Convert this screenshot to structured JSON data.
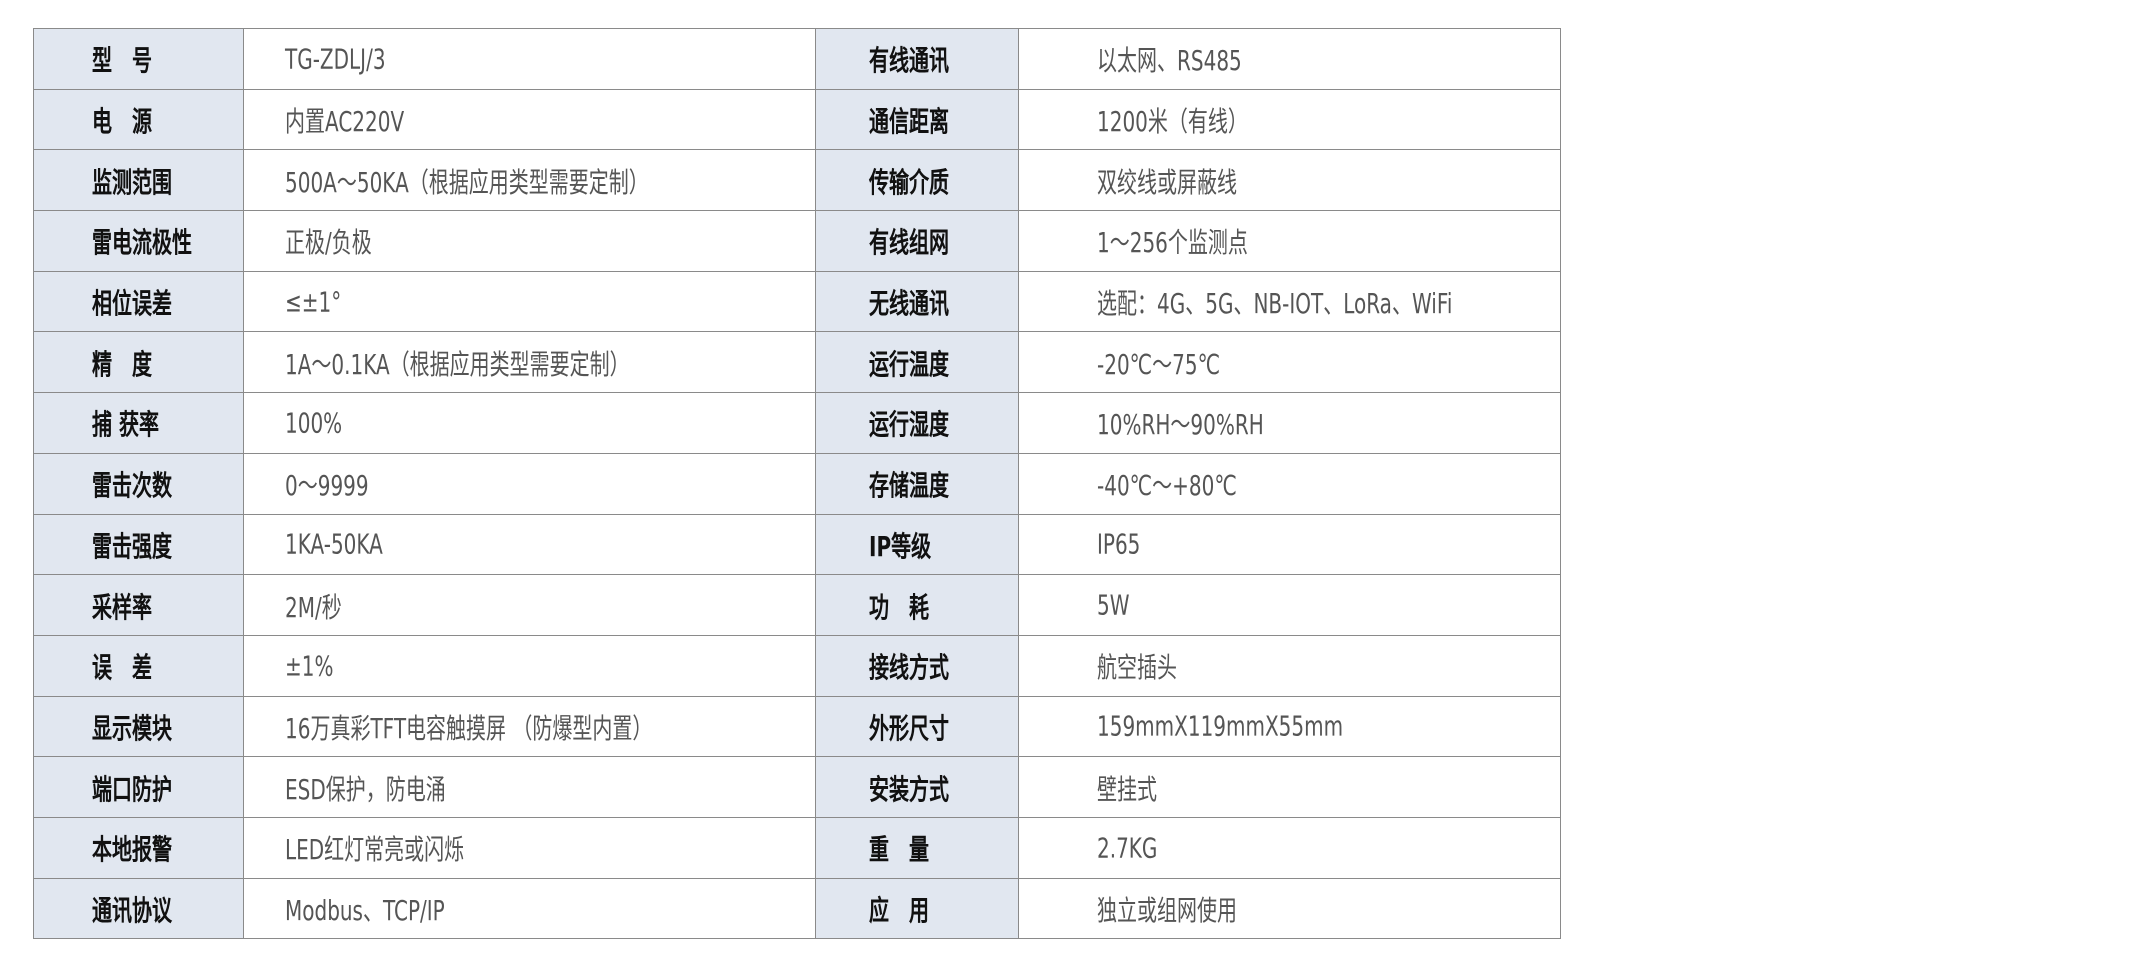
{
  "rows": [
    {
      "l_label": "型　号",
      "l_value": "TG-ZDLJ/3",
      "r_label": "有线通讯",
      "r_value": "以太网、RS485"
    },
    {
      "l_label": "电　源",
      "l_value": "内置AC220V",
      "r_label": "通信距离",
      "r_value": "1200米（有线）"
    },
    {
      "l_label": "监测范围",
      "l_value": "500A～50KA（根据应用类型需要定制）",
      "r_label": "传输介质",
      "r_value": "双绞线或屏蔽线"
    },
    {
      "l_label": "雷电流极性",
      "l_value": "正极/负极",
      "r_label": "有线组网",
      "r_value": "1～256个监测点"
    },
    {
      "l_label": "相位误差",
      "l_value": "≤±1°",
      "r_label": "无线通讯",
      "r_value": "选配：4G、5G、NB-IOT、LoRa、WiFi"
    },
    {
      "l_label": "精　度",
      "l_value": "1A～0.1KA（根据应用类型需要定制）",
      "r_label": "运行温度",
      "r_value": "-20℃～75℃"
    },
    {
      "l_label": "捕 获率",
      "l_value": "100%",
      "r_label": "运行湿度",
      "r_value": "10%RH～90%RH"
    },
    {
      "l_label": "雷击次数",
      "l_value": "0～9999",
      "r_label": "存储温度",
      "r_value": "-40℃～+80℃"
    },
    {
      "l_label": "雷击强度",
      "l_value": "1KA-50KA",
      "r_label": "IP等级",
      "r_value": "IP65"
    },
    {
      "l_label": "采样率",
      "l_value": "2M/秒",
      "r_label": "功　耗",
      "r_value": "5W"
    },
    {
      "l_label": "误　差",
      "l_value": "±1%",
      "r_label": "接线方式",
      "r_value": "航空插头"
    },
    {
      "l_label": "显示模块",
      "l_value": "16万真彩TFT电容触摸屏 （防爆型内置）",
      "r_label": "外形尺寸",
      "r_value": "159mmX119mmX55mm"
    },
    {
      "l_label": "端口防护",
      "l_value": "ESD保护，防电涌",
      "r_label": "安装方式",
      "r_value": "壁挂式"
    },
    {
      "l_label": "本地报警",
      "l_value": "LED红灯常亮或闪烁",
      "r_label": "重　量",
      "r_value": "2.7KG"
    },
    {
      "l_label": "通讯协议",
      "l_value": "Modbus、TCP/IP",
      "r_label": "应　用",
      "r_value": "独立或组网使用"
    }
  ],
  "colors": {
    "label_bg": "#e1e7f0",
    "border": "#8a8a8a",
    "label_text": "#111111",
    "value_text": "#555555"
  }
}
